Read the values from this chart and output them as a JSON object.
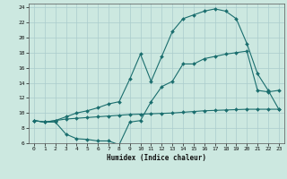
{
  "xlabel": "Humidex (Indice chaleur)",
  "bg_color": "#cce8e0",
  "grid_color": "#aacccc",
  "line_color": "#1a6e6e",
  "xlim": [
    -0.5,
    23.5
  ],
  "ylim": [
    6,
    24.5
  ],
  "xticks": [
    0,
    1,
    2,
    3,
    4,
    5,
    6,
    7,
    8,
    9,
    10,
    11,
    12,
    13,
    14,
    15,
    16,
    17,
    18,
    19,
    20,
    21,
    22,
    23
  ],
  "yticks": [
    6,
    8,
    10,
    12,
    14,
    16,
    18,
    20,
    22,
    24
  ],
  "line1_x": [
    0,
    1,
    2,
    3,
    4,
    5,
    6,
    7,
    8,
    9,
    10,
    11,
    12,
    13,
    14,
    15,
    16,
    17,
    18,
    19,
    20,
    21,
    22,
    23
  ],
  "line1_y": [
    9.0,
    8.8,
    9.0,
    9.5,
    10.0,
    10.3,
    10.7,
    11.2,
    11.5,
    14.5,
    17.8,
    14.2,
    17.5,
    20.8,
    22.5,
    23.0,
    23.5,
    23.8,
    23.5,
    22.5,
    19.2,
    15.2,
    13.0,
    10.5
  ],
  "line2_x": [
    0,
    1,
    2,
    3,
    4,
    5,
    6,
    7,
    8,
    9,
    10,
    11,
    12,
    13,
    14,
    15,
    16,
    17,
    18,
    19,
    20,
    21,
    22,
    23
  ],
  "line2_y": [
    9.0,
    8.8,
    9.0,
    9.2,
    9.3,
    9.4,
    9.5,
    9.6,
    9.7,
    9.8,
    9.85,
    9.9,
    9.95,
    10.0,
    10.1,
    10.2,
    10.3,
    10.35,
    10.4,
    10.45,
    10.5,
    10.5,
    10.5,
    10.5
  ],
  "line3_x": [
    0,
    1,
    2,
    3,
    4,
    5,
    6,
    7,
    8,
    9,
    10,
    11,
    12,
    13,
    14,
    15,
    16,
    17,
    18,
    19,
    20,
    21,
    22,
    23
  ],
  "line3_y": [
    9.0,
    8.8,
    8.8,
    7.2,
    6.6,
    6.5,
    6.3,
    6.3,
    5.8,
    8.8,
    9.0,
    11.5,
    13.5,
    14.2,
    16.5,
    16.5,
    17.2,
    17.5,
    17.8,
    18.0,
    18.2,
    13.0,
    12.8,
    13.0
  ]
}
